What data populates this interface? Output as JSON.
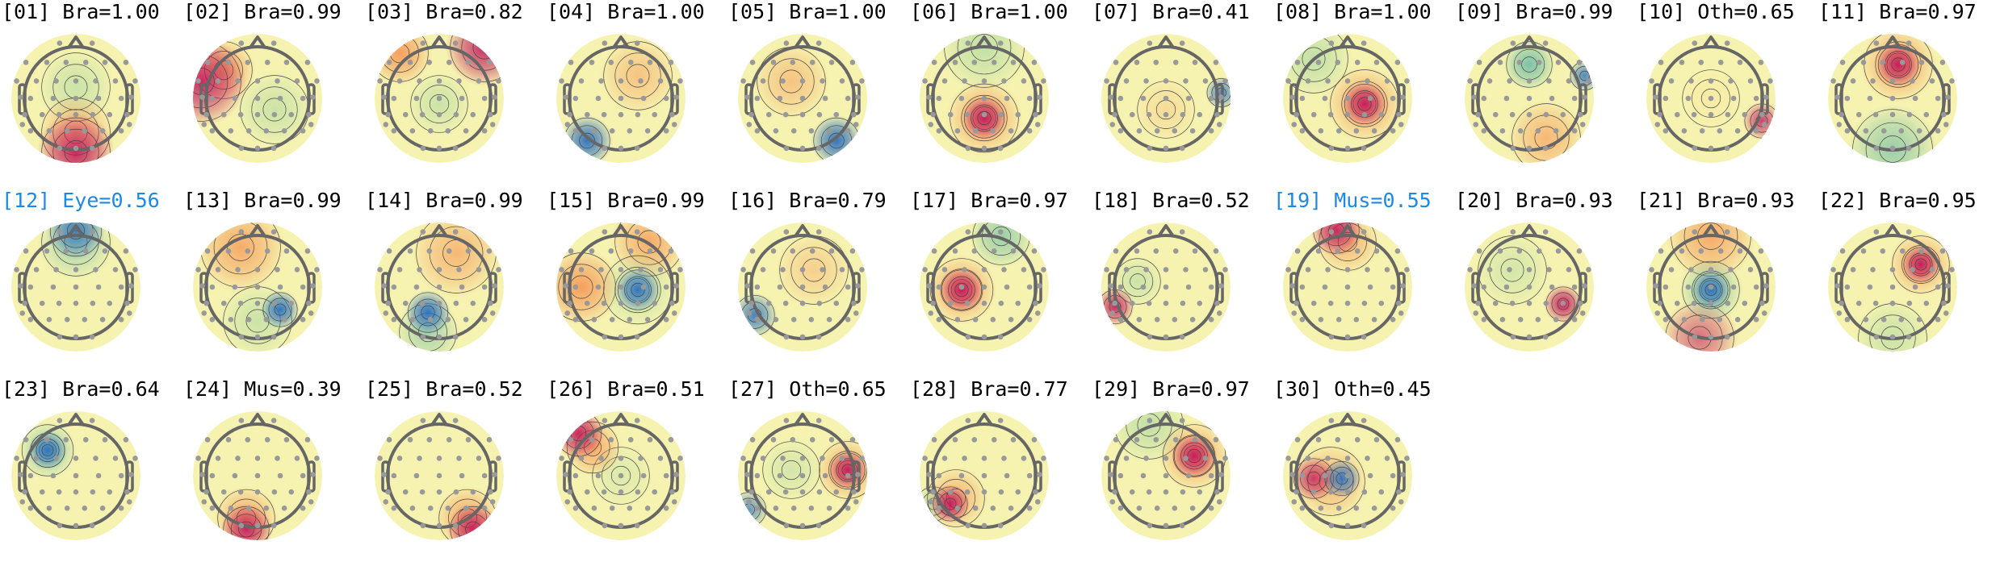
{
  "colors": {
    "normal_title": "#000000",
    "flagged_title": "#1e88e5",
    "colormap": "RdYlBu_r-style (red positive, blue negative)"
  },
  "components": [
    {
      "label": "[01] Bra=1.00",
      "flagged": false
    },
    {
      "label": "[02] Bra=0.99",
      "flagged": false
    },
    {
      "label": "[03] Bra=0.82",
      "flagged": false
    },
    {
      "label": "[04] Bra=1.00",
      "flagged": false
    },
    {
      "label": "[05] Bra=1.00",
      "flagged": false
    },
    {
      "label": "[06] Bra=1.00",
      "flagged": false
    },
    {
      "label": "[07] Bra=0.41",
      "flagged": false
    },
    {
      "label": "[08] Bra=1.00",
      "flagged": false
    },
    {
      "label": "[09] Bra=0.99",
      "flagged": false
    },
    {
      "label": "[10] Oth=0.65",
      "flagged": false
    },
    {
      "label": "[11] Bra=0.97",
      "flagged": false
    },
    {
      "label": "[12] Eye=0.56",
      "flagged": true
    },
    {
      "label": "[13] Bra=0.99",
      "flagged": false
    },
    {
      "label": "[14] Bra=0.99",
      "flagged": false
    },
    {
      "label": "[15] Bra=0.99",
      "flagged": false
    },
    {
      "label": "[16] Bra=0.79",
      "flagged": false
    },
    {
      "label": "[17] Bra=0.97",
      "flagged": false
    },
    {
      "label": "[18] Bra=0.52",
      "flagged": false
    },
    {
      "label": "[19] Mus=0.55",
      "flagged": true
    },
    {
      "label": "[20] Bra=0.93",
      "flagged": false
    },
    {
      "label": "[21] Bra=0.93",
      "flagged": false
    },
    {
      "label": "[22] Bra=0.95",
      "flagged": false
    },
    {
      "label": "[23] Bra=0.64",
      "flagged": false
    },
    {
      "label": "[24] Mus=0.39",
      "flagged": false
    },
    {
      "label": "[25] Bra=0.52",
      "flagged": false
    },
    {
      "label": "[26] Bra=0.51",
      "flagged": false
    },
    {
      "label": "[27] Oth=0.65",
      "flagged": false
    },
    {
      "label": "[28] Bra=0.77",
      "flagged": false
    },
    {
      "label": "[29] Bra=0.97",
      "flagged": false
    },
    {
      "label": "[30] Oth=0.45",
      "flagged": false
    }
  ]
}
